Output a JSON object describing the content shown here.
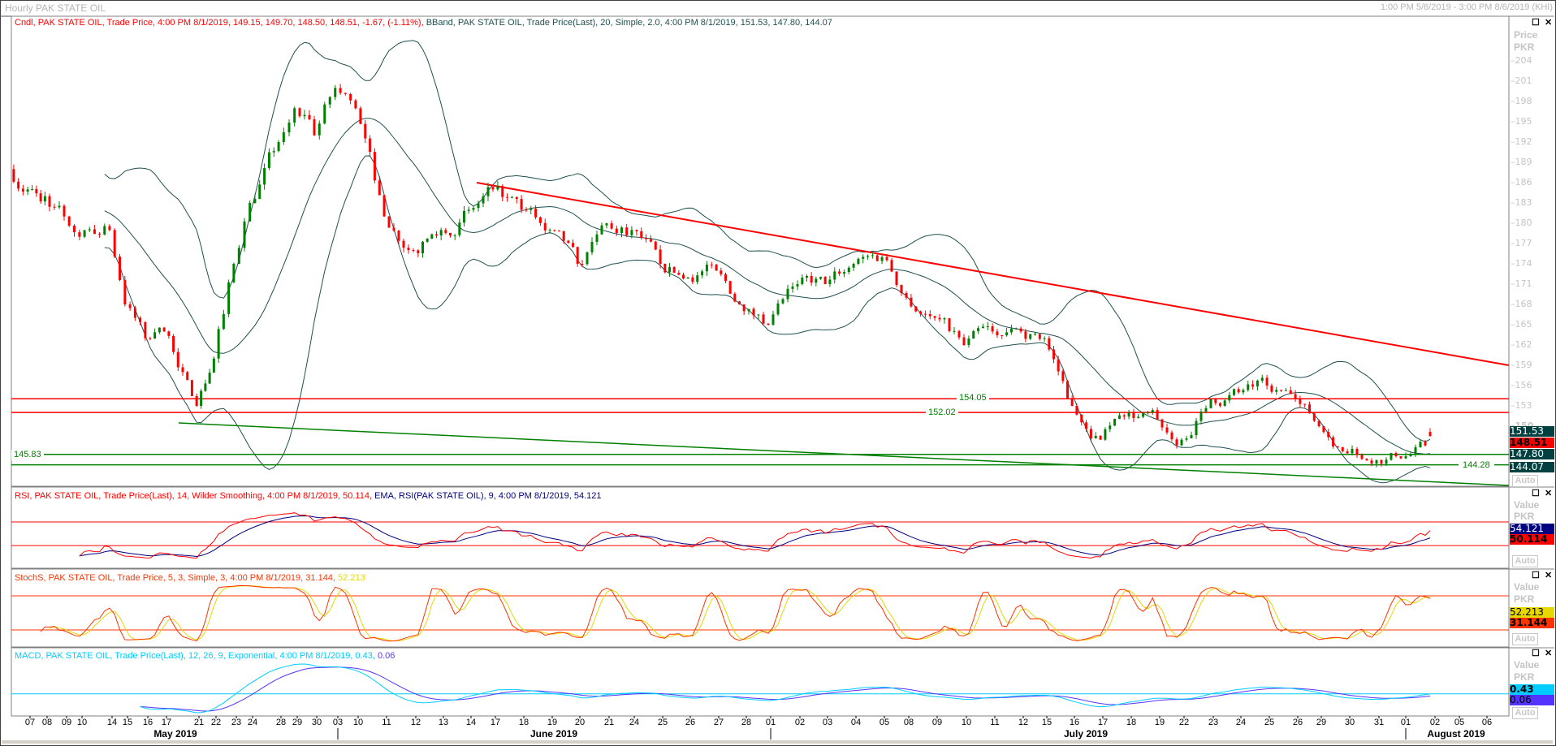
{
  "window": {
    "title": "Hourly PAK STATE OIL",
    "range": "1:00 PM 5/6/2019 - 3:00 PM 8/6/2019 (KHI)",
    "maximize_icon": "window-maximize-icon",
    "close_icon": "close-icon"
  },
  "main_panel": {
    "legend_candle": "Cndl, PAK STATE OIL, Trade Price, 4:00 PM 8/1/2019, 149.15, 149.70, 148.50, 148.51, -1.67, (-1.11%),",
    "legend_bband": "BBand, PAK STATE OIL, Trade Price(Last),  20, Simple, 2.0, 4:00 PM 8/1/2019, 151.53, 147.80, 144.07",
    "axis_title": "Price",
    "axis_unit": "PKR",
    "auto_label": "Auto",
    "value_labels": {
      "bb_upper": "151.53",
      "last": "148.51",
      "bb_mid": "147.80",
      "bb_lower": "144.07"
    },
    "level_labels": {
      "r1": "154.05",
      "r2": "152.02",
      "s1": "145.83",
      "s2": "144.28"
    }
  },
  "rsi_panel": {
    "legend_rsi": "RSI, PAK STATE OIL, Trade Price(Last),  14, Wilder Smoothing, 4:00 PM 8/1/2019, 50.114,",
    "legend_ema": "EMA, RSI(PAK STATE OIL),  9, 4:00 PM 8/1/2019, 54.121",
    "axis_title": "Value",
    "axis_unit": "PKR",
    "auto_label": "Auto",
    "value_labels": {
      "ema": "54.121",
      "rsi": "50.114"
    }
  },
  "stoch_panel": {
    "legend_k": "StochS, PAK STATE OIL, Trade Price,  5, 3, Simple, 3, 4:00 PM 8/1/2019, 31.144,",
    "legend_d": "52.213",
    "axis_title": "Value",
    "axis_unit": "PKR",
    "auto_label": "Auto",
    "value_labels": {
      "d": "52.213",
      "k": "31.144"
    }
  },
  "macd_panel": {
    "legend_macd": "MACD, PAK STATE OIL, Trade Price(Last),  12, 26, 9, Exponential, 4:00 PM 8/1/2019, 0.43,",
    "legend_signal": "0.06",
    "axis_title": "Value",
    "axis_unit": "PKR",
    "auto_label": "Auto",
    "value_labels": {
      "macd": "0.43",
      "signal": "0.06"
    }
  },
  "x_axis": {
    "days": [
      "07",
      "08",
      "09",
      "10",
      "14",
      "15",
      "16",
      "17",
      "21",
      "22",
      "23",
      "24",
      "28",
      "29",
      "30",
      "03",
      "10",
      "11",
      "12",
      "13",
      "14",
      "17",
      "18",
      "19",
      "20",
      "21",
      "24",
      "25",
      "26",
      "27",
      "28",
      "01",
      "02",
      "03",
      "04",
      "05",
      "08",
      "09",
      "10",
      "11",
      "12",
      "15",
      "16",
      "17",
      "18",
      "19",
      "22",
      "23",
      "24",
      "25",
      "26",
      "29",
      "30",
      "31",
      "01",
      "02",
      "05",
      "06"
    ],
    "months": [
      "May 2019",
      "June 2019",
      "July 2019",
      "August 2019"
    ]
  },
  "colors": {
    "up": "#008000",
    "down": "#ff0000",
    "bband": "#1f4f4f",
    "rsi": "#ff0000",
    "rsi_ema": "#000080",
    "stoch_k": "#ff3300",
    "stoch_d": "#e6d800",
    "macd": "#00ccff",
    "signal": "#5533ff",
    "resistance": "#ff0000",
    "support": "#008000"
  },
  "chart_data": {
    "type": "candlestick",
    "title": "Hourly PAK STATE OIL",
    "ylabel": "Price PKR",
    "ylim": [
      143,
      206
    ],
    "y_ticks": [
      204,
      201,
      198,
      195,
      192,
      189,
      186,
      183,
      180,
      177,
      174,
      171,
      168,
      165,
      162,
      159,
      156,
      153,
      150
    ],
    "daily_closes_approx": [
      {
        "date": "2019-05-06",
        "close": 185
      },
      {
        "date": "2019-05-07",
        "close": 184
      },
      {
        "date": "2019-05-08",
        "close": 181
      },
      {
        "date": "2019-05-09",
        "close": 178
      },
      {
        "date": "2019-05-10",
        "close": 179
      },
      {
        "date": "2019-05-14",
        "close": 168
      },
      {
        "date": "2019-05-15",
        "close": 163
      },
      {
        "date": "2019-05-16",
        "close": 164
      },
      {
        "date": "2019-05-17",
        "close": 153
      },
      {
        "date": "2019-05-21",
        "close": 160
      },
      {
        "date": "2019-05-22",
        "close": 174
      },
      {
        "date": "2019-05-23",
        "close": 183
      },
      {
        "date": "2019-05-24",
        "close": 192
      },
      {
        "date": "2019-05-28",
        "close": 197
      },
      {
        "date": "2019-05-29",
        "close": 193
      },
      {
        "date": "2019-05-30",
        "close": 200
      },
      {
        "date": "2019-06-03",
        "close": 197
      },
      {
        "date": "2019-06-10",
        "close": 181
      },
      {
        "date": "2019-06-11",
        "close": 176
      },
      {
        "date": "2019-06-12",
        "close": 179
      },
      {
        "date": "2019-06-13",
        "close": 182
      },
      {
        "date": "2019-06-14",
        "close": 185
      },
      {
        "date": "2019-06-17",
        "close": 182
      },
      {
        "date": "2019-06-18",
        "close": 179
      },
      {
        "date": "2019-06-19",
        "close": 174
      },
      {
        "date": "2019-06-20",
        "close": 180
      },
      {
        "date": "2019-06-21",
        "close": 179
      },
      {
        "date": "2019-06-24",
        "close": 174
      },
      {
        "date": "2019-06-25",
        "close": 172
      },
      {
        "date": "2019-06-26",
        "close": 173
      },
      {
        "date": "2019-06-27",
        "close": 167
      },
      {
        "date": "2019-06-28",
        "close": 165
      },
      {
        "date": "2019-07-01",
        "close": 171
      },
      {
        "date": "2019-07-02",
        "close": 171
      },
      {
        "date": "2019-07-03",
        "close": 174
      },
      {
        "date": "2019-07-04",
        "close": 175
      },
      {
        "date": "2019-07-05",
        "close": 169
      },
      {
        "date": "2019-07-08",
        "close": 166
      },
      {
        "date": "2019-07-09",
        "close": 162
      },
      {
        "date": "2019-07-10",
        "close": 164
      },
      {
        "date": "2019-07-11",
        "close": 164
      },
      {
        "date": "2019-07-12",
        "close": 163
      },
      {
        "date": "2019-07-15",
        "close": 153
      },
      {
        "date": "2019-07-16",
        "close": 148
      },
      {
        "date": "2019-07-17",
        "close": 152
      },
      {
        "date": "2019-07-18",
        "close": 151
      },
      {
        "date": "2019-07-19",
        "close": 148
      },
      {
        "date": "2019-07-22",
        "close": 154
      },
      {
        "date": "2019-07-23",
        "close": 155
      },
      {
        "date": "2019-07-24",
        "close": 156
      },
      {
        "date": "2019-07-25",
        "close": 154
      },
      {
        "date": "2019-07-26",
        "close": 150
      },
      {
        "date": "2019-07-29",
        "close": 146
      },
      {
        "date": "2019-07-30",
        "close": 145
      },
      {
        "date": "2019-07-31",
        "close": 147
      },
      {
        "date": "2019-08-01",
        "close": 148.51
      }
    ],
    "last_bar": {
      "time": "4:00 PM 8/1/2019",
      "open": 149.15,
      "high": 149.7,
      "low": 148.5,
      "close": 148.51,
      "change": -1.67,
      "change_pct": -1.11
    },
    "bollinger": {
      "period": 20,
      "stddev": 2.0,
      "upper": 151.53,
      "middle": 147.8,
      "lower": 144.07
    },
    "horizontal_levels": [
      {
        "value": 154.05,
        "color": "red"
      },
      {
        "value": 152.02,
        "color": "red"
      },
      {
        "value": 145.83,
        "color": "green"
      },
      {
        "value": 144.28,
        "color": "green"
      }
    ],
    "trendlines": [
      {
        "name": "resistance",
        "from": {
          "date": "2019-06-14",
          "price": 186
        },
        "to": {
          "date": "2019-08-06",
          "price": 159
        }
      },
      {
        "name": "support",
        "from": {
          "date": "2019-05-17",
          "price": 150.5
        },
        "to": {
          "date": "2019-08-06",
          "price": 141.3
        }
      }
    ],
    "rsi": {
      "period": 14,
      "value": 50.114,
      "ema_period": 9,
      "ema_value": 54.121,
      "levels": [
        70,
        30
      ]
    },
    "stochastic": {
      "k": 31.144,
      "d": 52.213,
      "levels": [
        80,
        20
      ]
    },
    "macd": {
      "fast": 12,
      "slow": 26,
      "signal": 9,
      "macd": 0.43,
      "signal_value": 0.06
    }
  }
}
